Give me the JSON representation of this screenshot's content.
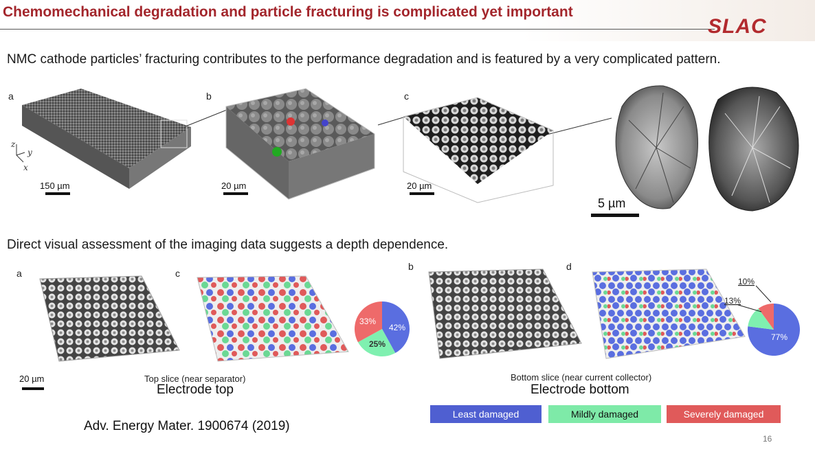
{
  "header": {
    "title": "Chemomechanical degradation and particle fracturing is complicated yet important",
    "logo_text": "SLAC"
  },
  "intro_text": "NMC cathode particles’ fracturing contributes to the performance degradation and is featured by a very complicated pattern.",
  "top_panels": {
    "a": {
      "letter": "a",
      "scale_label": "150 µm",
      "axes": {
        "z": "z",
        "y": "y",
        "x": "x"
      }
    },
    "b": {
      "letter": "b",
      "scale_label": "20 µm"
    },
    "c": {
      "letter": "c",
      "scale_label": "20 µm"
    },
    "d": {
      "scale_label": "5 µm"
    }
  },
  "middle_text": "Direct visual assessment of the imaging data suggests a depth dependence.",
  "bottom_panels": {
    "a_letter": "a",
    "c_letter": "c",
    "b_letter": "b",
    "d_letter": "d",
    "scale_label": "20 µm",
    "top_slice_caption": "Top slice (near separator)",
    "top_caption": "Electrode top",
    "bottom_slice_caption": "Bottom slice (near current collector)",
    "bottom_caption": "Electrode bottom"
  },
  "pie_top": {
    "least": "42%",
    "mild": "25%",
    "severe": "33%"
  },
  "pie_bottom": {
    "least": "77%",
    "mild": "13%",
    "severe": "10%"
  },
  "chart_data": [
    {
      "type": "pie",
      "categories": [
        "Least damaged",
        "Mildly damaged",
        "Severely damaged"
      ],
      "values": [
        42,
        25,
        33
      ],
      "colors": [
        "#5a6ee0",
        "#7ff0b0",
        "#ee6a6a"
      ]
    },
    {
      "type": "pie",
      "categories": [
        "Least damaged",
        "Mildly damaged",
        "Severely damaged"
      ],
      "values": [
        77,
        13,
        10
      ],
      "colors": [
        "#5a6ee0",
        "#7ff0b0",
        "#ee6a6a"
      ]
    }
  ],
  "legend": {
    "least": "Least damaged",
    "mild": "Mildly damaged",
    "severe": "Severely damaged",
    "colors": {
      "least": "#4f5fd1",
      "mild": "#7eeaa8",
      "severe": "#e05a5a"
    }
  },
  "citation": "Adv. Energy Mater. 1900674 (2019)",
  "page_number": "16"
}
